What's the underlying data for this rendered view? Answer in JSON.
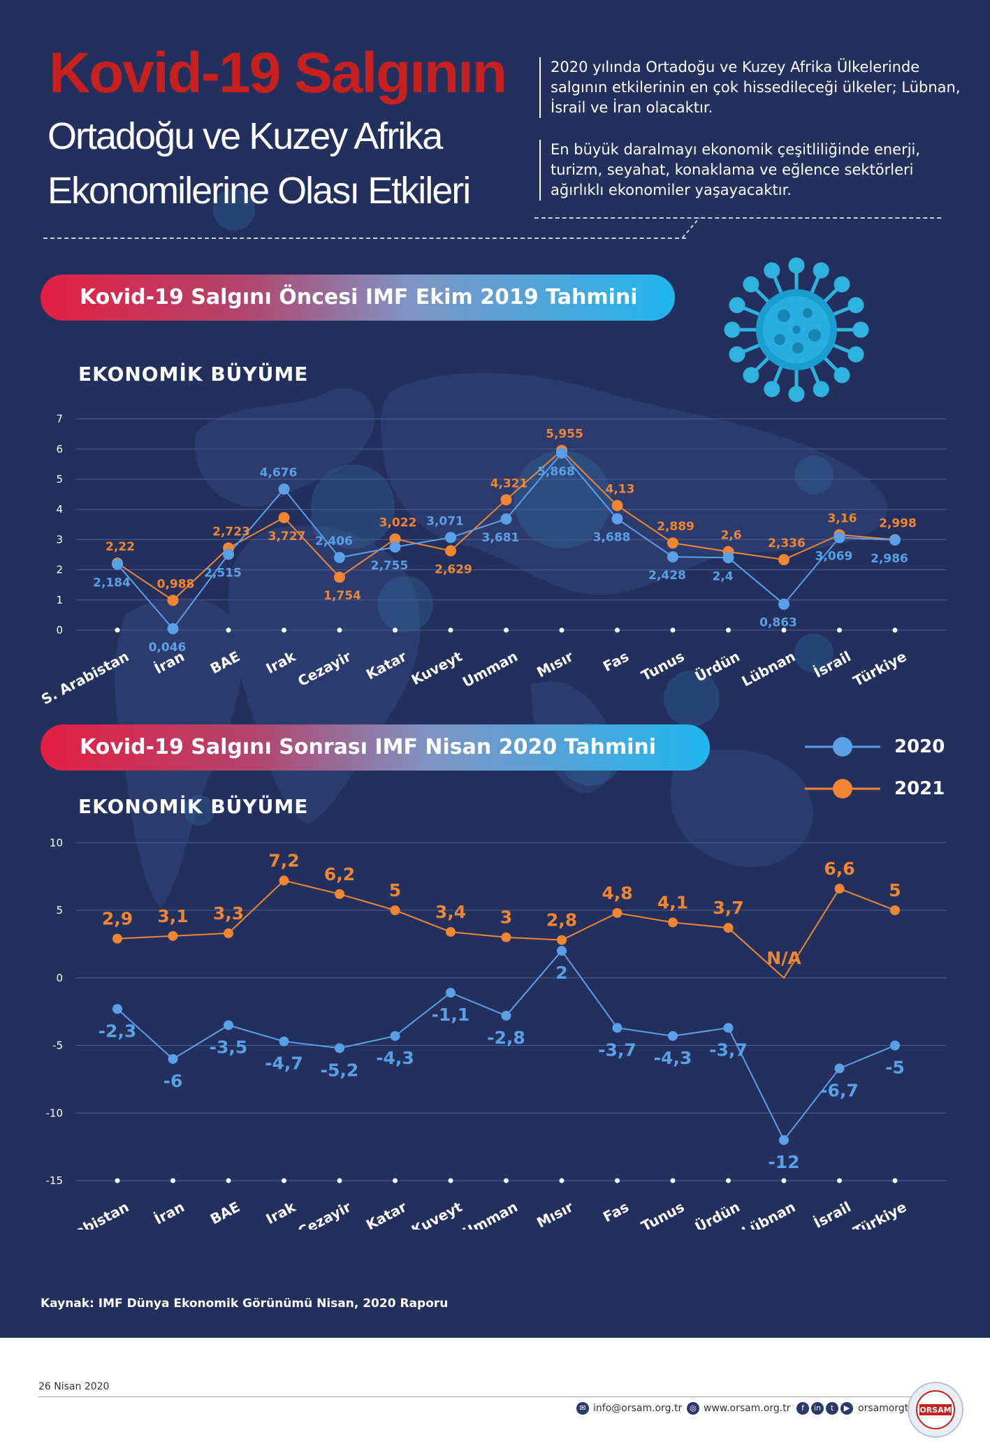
{
  "header": {
    "title_red": "Kovid-19 Salgının",
    "title_line2": "Ortadoğu ve Kuzey Afrika",
    "title_line3": "Ekonomilerine Olası Etkileri",
    "note1": "2020 yılında Ortadoğu ve Kuzey Afrika Ülkelerinde salgının etkilerinin en çok hissedileceği ülkeler; Lübnan, İsrail ve İran olacaktır.",
    "note2": "En büyük daralmayı ekonomik çeşitliliğinde enerji, turizm, seyahat, konaklama ve eğlence sektörleri ağırlıklı ekonomiler yaşayacaktır."
  },
  "legend": {
    "s2020": "2020",
    "s2021": "2021"
  },
  "source": "Kaynak: IMF Dünya Ekonomik Görünümü Nisan, 2020 Raporu",
  "footer": {
    "date": "26 Nisan 2020",
    "email": "info@orsam.org.tr",
    "web": "www.orsam.org.tr",
    "social": "orsamorgtr",
    "logo_text": "ORSAM"
  },
  "colors": {
    "s2020": "#5aa0e6",
    "s2021": "#f08632",
    "background": "#23305e",
    "title_red": "#c8201e"
  },
  "icons": [
    "virus-icon",
    "email-icon",
    "globe-icon",
    "facebook-icon",
    "linkedin-icon",
    "twitter-icon",
    "youtube-icon"
  ],
  "chart_data": [
    {
      "type": "line",
      "banner": "Kovid-19 Salgını Öncesi IMF Ekim 2019 Tahmini",
      "title": "EKONOMİK BÜYÜME",
      "categories": [
        "S. Arabistan",
        "İran",
        "BAE",
        "Irak",
        "Cezayir",
        "Katar",
        "Kuveyt",
        "Umman",
        "Mısır",
        "Fas",
        "Tunus",
        "Ürdün",
        "Lübnan",
        "İsrail",
        "Türkiye"
      ],
      "ylim": [
        0,
        7
      ],
      "yticks": [
        "0",
        "1",
        "2",
        "3",
        "4",
        "5",
        "6",
        "7"
      ],
      "grid": true,
      "legend_position": "right",
      "series": [
        {
          "name": "2020",
          "values": [
            2.184,
            0.046,
            2.515,
            4.676,
            2.406,
            2.755,
            3.071,
            3.681,
            5.868,
            3.688,
            2.428,
            2.4,
            0.863,
            3.069,
            2.986
          ],
          "labels": [
            "2,184",
            "0,046",
            "2,515",
            "4,676",
            "2,406",
            "2,755",
            "3,071",
            "3,681",
            "5,868",
            "3,688",
            "2,428",
            "2,4",
            "0,863",
            "3,069",
            "2,986"
          ]
        },
        {
          "name": "2021",
          "values": [
            2.22,
            0.988,
            2.723,
            3.727,
            1.754,
            3.022,
            2.629,
            4.321,
            5.955,
            4.13,
            2.889,
            2.6,
            2.336,
            3.16,
            2.998
          ],
          "labels": [
            "2,22",
            "0,988",
            "2,723",
            "3,727",
            "1,754",
            "3,022",
            "2,629",
            "4,321",
            "5,955",
            "4,13",
            "2,889",
            "2,6",
            "2,336",
            "3,16",
            "2,998"
          ]
        }
      ]
    },
    {
      "type": "line",
      "banner": "Kovid-19 Salgını Sonrası IMF Nisan 2020 Tahmini",
      "title": "EKONOMİK BÜYÜME",
      "categories": [
        "S. Arabistan",
        "İran",
        "BAE",
        "Irak",
        "Cezayir",
        "Katar",
        "Kuveyt",
        "Umman",
        "Mısır",
        "Fas",
        "Tunus",
        "Ürdün",
        "Lübnan",
        "İsrail",
        "Türkiye"
      ],
      "ylim": [
        -15,
        10
      ],
      "yticks": [
        "-15",
        "-10",
        "-5",
        "0",
        "5",
        "10"
      ],
      "grid": true,
      "series": [
        {
          "name": "2020",
          "values": [
            -2.3,
            -6,
            -3.5,
            -4.7,
            -5.2,
            -4.3,
            -1.1,
            -2.8,
            2,
            -3.7,
            -4.3,
            -3.7,
            -12,
            -6.7,
            -5
          ],
          "labels": [
            "-2,3",
            "-6",
            "-3,5",
            "-4,7",
            "-5,2",
            "-4,3",
            "-1,1",
            "-2,8",
            "2",
            "-3,7",
            "-4,3",
            "-3,7",
            "-12",
            "-6,7",
            "-5"
          ]
        },
        {
          "name": "2021",
          "values": [
            2.9,
            3.1,
            3.3,
            7.2,
            6.2,
            5,
            3.4,
            3,
            2.8,
            4.8,
            4.1,
            3.7,
            null,
            6.6,
            5
          ],
          "labels": [
            "2,9",
            "3,1",
            "3,3",
            "7,2",
            "6,2",
            "5",
            "3,4",
            "3",
            "2,8",
            "4,8",
            "4,1",
            "3,7",
            "N/A",
            "6,6",
            "5"
          ]
        }
      ]
    }
  ]
}
